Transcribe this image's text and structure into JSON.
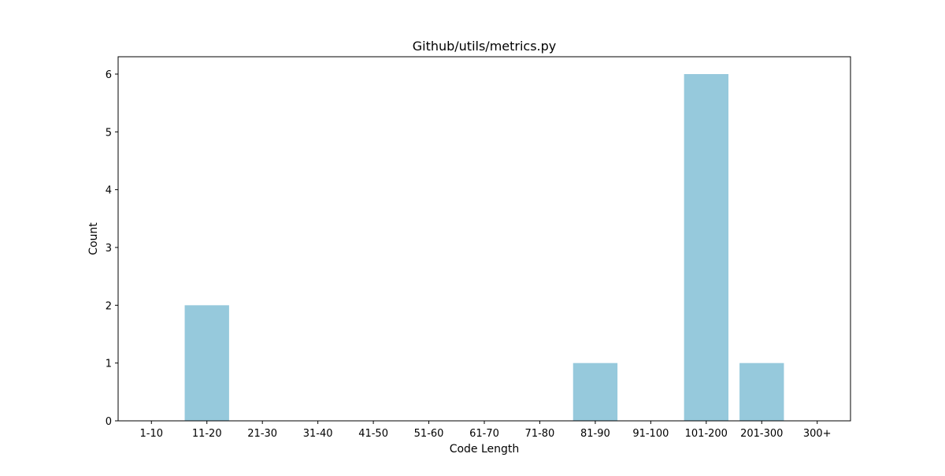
{
  "chart_data": {
    "type": "bar",
    "title": "Github/utils/metrics.py",
    "xlabel": "Code Length",
    "ylabel": "Count",
    "categories": [
      "1-10",
      "11-20",
      "21-30",
      "31-40",
      "41-50",
      "51-60",
      "61-70",
      "71-80",
      "81-90",
      "91-100",
      "101-200",
      "201-300",
      "300+"
    ],
    "values": [
      0,
      2,
      0,
      0,
      0,
      0,
      0,
      0,
      1,
      0,
      6,
      1,
      0
    ],
    "ylim": [
      0,
      6.3
    ],
    "yticks": [
      "0",
      "1",
      "2",
      "3",
      "4",
      "5",
      "6"
    ],
    "bar_color": "#96c9dc",
    "grid": false,
    "legend": "none"
  }
}
